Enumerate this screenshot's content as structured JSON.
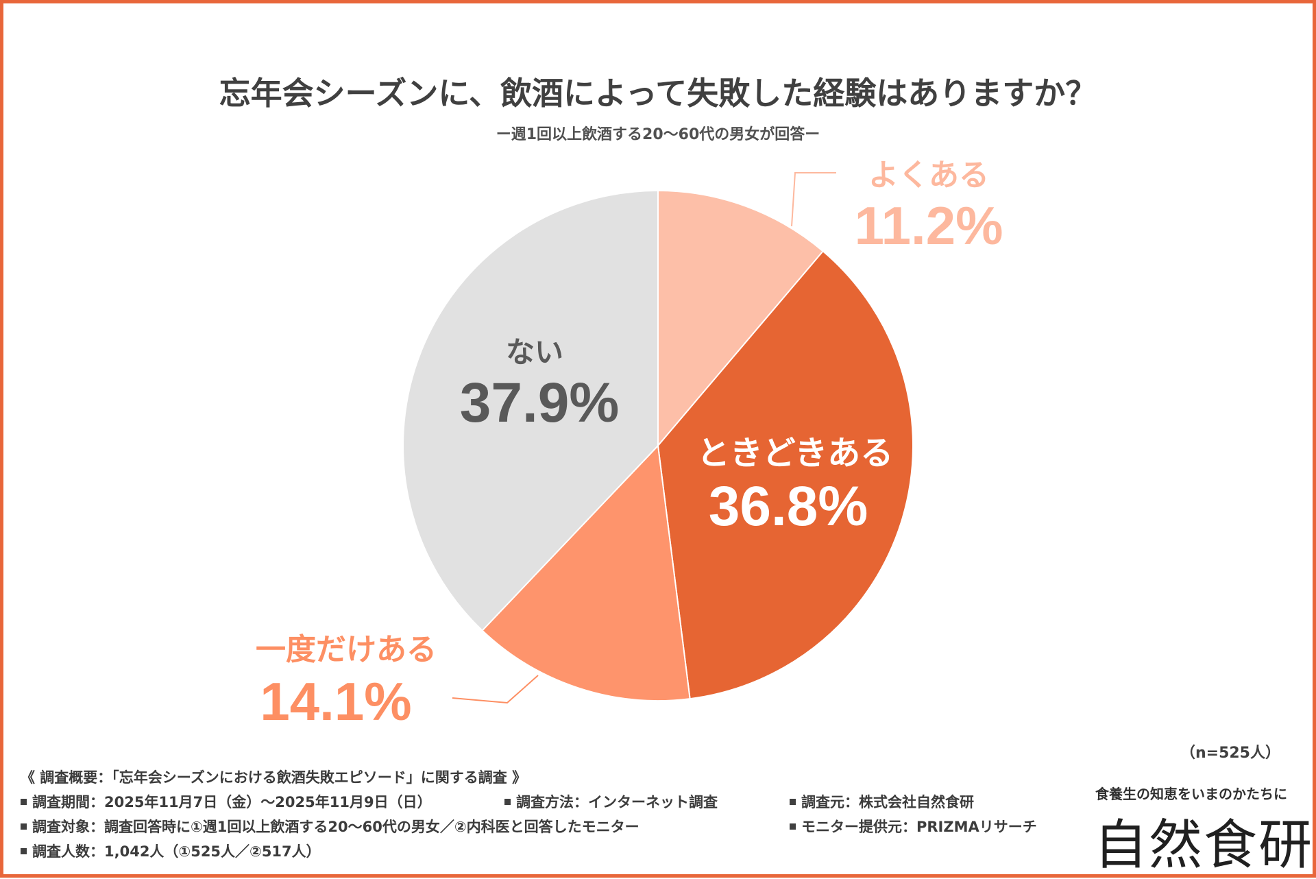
{
  "title": "忘年会シーズンに、飲酒によって失敗した経験はありますか？",
  "subtitle": "ー週1回以上飲酒する20〜60代の男女が回答ー",
  "chart_data": {
    "type": "pie",
    "start_angle": "12 o'clock, clockwise",
    "slices": [
      {
        "label": "よくある",
        "value": 11.2,
        "display": "11.2%",
        "color": "#fdbfa8",
        "label_color": "#fdb89e",
        "placement": "outside-top-right"
      },
      {
        "label": "ときどきある",
        "value": 36.8,
        "display": "36.8%",
        "color": "#e66533",
        "label_color": "#ffffff",
        "placement": "inside"
      },
      {
        "label": "一度だけある",
        "value": 14.1,
        "display": "14.1%",
        "color": "#fe946c",
        "label_color": "#fd8f63",
        "placement": "outside-bottom-left"
      },
      {
        "label": "ない",
        "value": 37.9,
        "display": "37.9%",
        "color": "#e1e1e1",
        "label_color": "#595959",
        "placement": "inside"
      }
    ]
  },
  "sample_note": "（n=525人）",
  "survey": {
    "heading": "《 調査概要：「忘年会シーズンにおける飲酒失敗エピソード」に関する調査 》",
    "period": "調査期間：2025年11月7日（金）〜2025年11月9日（日）",
    "method": "調査方法：インターネット調査",
    "organizer": "調査元：株式会社自然食研",
    "target": "調査対象：調査回答時に①週1回以上飲酒する20〜60代の男女／②内科医と回答したモニター",
    "provider": "モニター提供元：PRIZMAリサーチ",
    "count": "調査人数：1,042人（①525人／②517人）"
  },
  "brand": {
    "tagline": "食養生の知恵をいまのかたちに",
    "logo": "自然食研"
  }
}
